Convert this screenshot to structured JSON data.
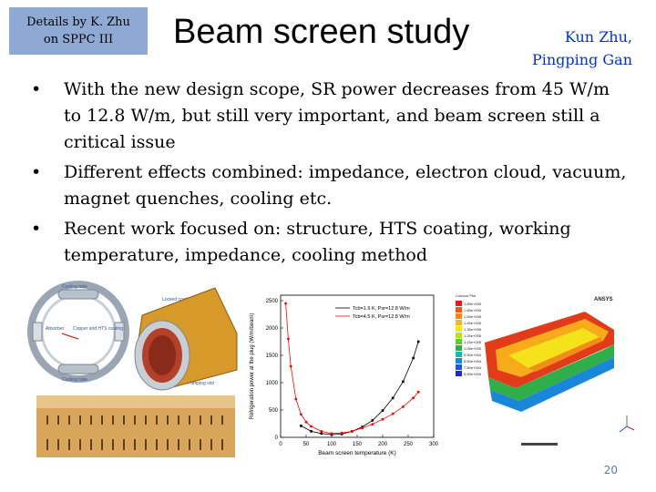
{
  "header": {
    "tag_line1": "Details by K. Zhu",
    "tag_line2": "on SPPC III",
    "title": "Beam screen study",
    "author1": "Kun Zhu,",
    "author2": "Pingping Gan"
  },
  "bullets": [
    "With the new design scope, SR power decreases from 45 W/m to 12.8 W/m, but still very important, and beam screen still a critical issue",
    "Different effects combined: impedance, electron cloud, vacuum, magnet quenches, cooling etc.",
    "Recent work focused on: structure, HTS coating, working temperature, impedance, cooling method"
  ],
  "figure_left": {
    "labels": [
      "Cooling tube",
      "Absorber",
      "Copper and HTS coating",
      "Cooling tube",
      "Locked coating",
      "Pumping slot"
    ]
  },
  "figure_right": {
    "logo": "ANSYS",
    "legend_title": "Contour Plot",
    "legend_values": [
      "1.85e+005",
      "1.65e+005",
      "1.55e+005",
      "1.45e+005",
      "1.35e+005",
      "1.25e+005",
      "1.15e+005",
      "1.05e+005",
      "9.50e+004",
      "8.50e+004",
      "7.50e+004",
      "6.50e+004"
    ]
  },
  "page_number": "20",
  "chart_data": {
    "type": "line",
    "title": "",
    "xlabel": "Beam screen temperature (K)",
    "ylabel": "Refrigeration power at the plug (W/m/beam)",
    "xlim": [
      0,
      300
    ],
    "ylim": [
      0,
      2600
    ],
    "xticks": [
      0,
      50,
      100,
      150,
      200,
      250,
      300
    ],
    "yticks": [
      0,
      500,
      1000,
      1500,
      2000,
      2500
    ],
    "series": [
      {
        "name": "Tcb=1.9 K, Psr=12.8 W/m",
        "color": "#000000",
        "x": [
          40,
          60,
          80,
          100,
          120,
          140,
          160,
          180,
          200,
          220,
          240,
          260,
          270
        ],
        "y": [
          210,
          110,
          70,
          50,
          60,
          110,
          190,
          310,
          490,
          720,
          1020,
          1450,
          1750
        ]
      },
      {
        "name": "Tcb=4.5 K, Psr=12.8 W/m",
        "color": "#ff0000",
        "x": [
          10,
          15,
          20,
          30,
          40,
          50,
          60,
          80,
          100,
          120,
          140,
          160,
          180,
          200,
          220,
          240,
          260,
          270
        ],
        "y": [
          2450,
          1800,
          1300,
          700,
          420,
          280,
          200,
          110,
          70,
          80,
          110,
          170,
          240,
          330,
          430,
          560,
          720,
          830
        ]
      }
    ]
  }
}
